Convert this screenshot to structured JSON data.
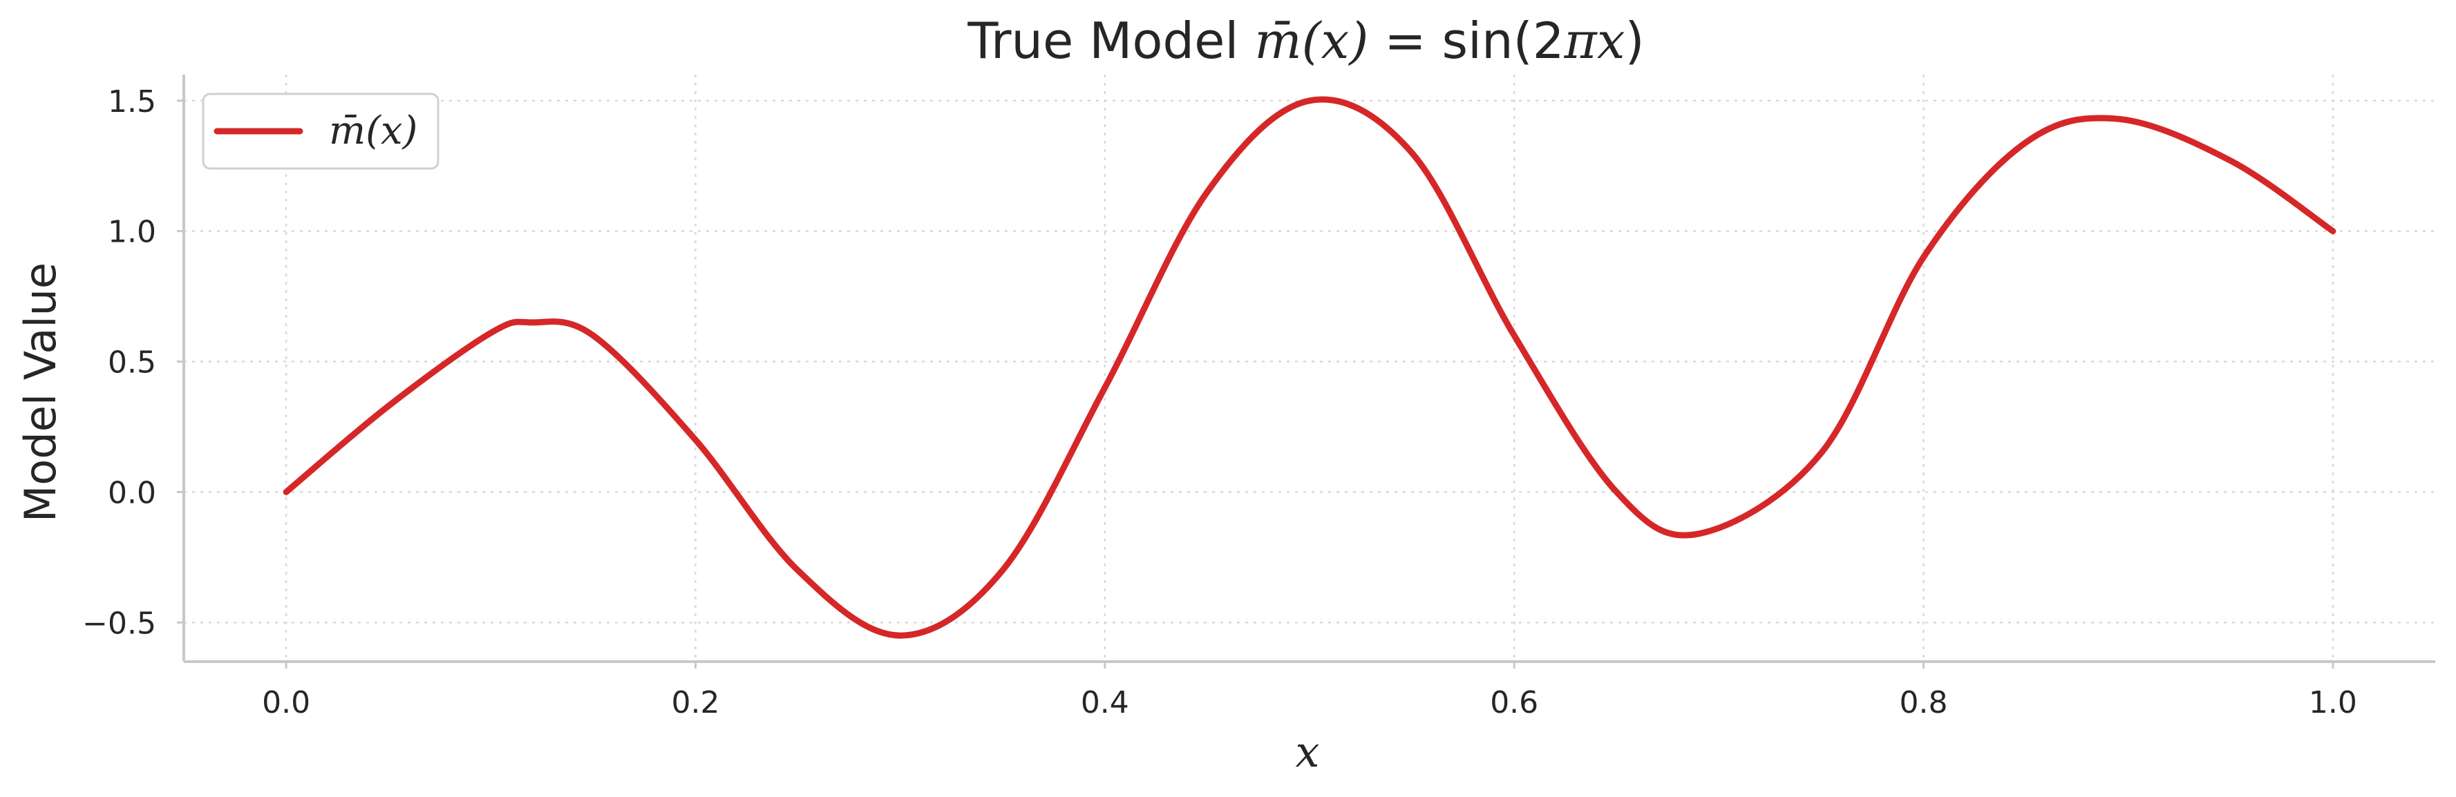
{
  "chart_data": {
    "type": "line",
    "title": "True Model m̄(x) = sin(2πx)",
    "title_parts": {
      "prefix": "True Model ",
      "math_lhs": "m̄(x)",
      "equals": " = ",
      "math_rhs_pre": "sin(2",
      "math_rhs_pi": "πx",
      "math_rhs_post": ")"
    },
    "xlabel": "x",
    "ylabel": "Model Value",
    "xlim": [
      -0.05,
      1.05
    ],
    "ylim": [
      -0.65,
      1.6
    ],
    "x_ticks": [
      0.0,
      0.2,
      0.4,
      0.6,
      0.8,
      1.0
    ],
    "x_tick_labels": [
      "0.0",
      "0.2",
      "0.4",
      "0.6",
      "0.8",
      "1.0"
    ],
    "y_ticks": [
      -0.5,
      0.0,
      0.5,
      1.0,
      1.5
    ],
    "y_tick_labels": [
      "−0.5",
      "0.0",
      "0.5",
      "1.0",
      "1.5"
    ],
    "grid": true,
    "legend": {
      "placement": "top-left",
      "entries": [
        "m̄(x)"
      ]
    },
    "series": [
      {
        "name": "m̄(x)",
        "color": "#d62728",
        "x": [
          0.0,
          0.05,
          0.1,
          0.12,
          0.15,
          0.2,
          0.25,
          0.3,
          0.35,
          0.4,
          0.45,
          0.5,
          0.55,
          0.6,
          0.65,
          0.69,
          0.75,
          0.8,
          0.85,
          0.895,
          0.95,
          1.0
        ],
        "y": [
          0.0,
          0.33,
          0.61,
          0.65,
          0.6,
          0.2,
          -0.3,
          -0.55,
          -0.3,
          0.4,
          1.15,
          1.5,
          1.3,
          0.6,
          0.0,
          -0.16,
          0.15,
          0.9,
          1.34,
          1.43,
          1.27,
          1.0
        ]
      }
    ]
  }
}
